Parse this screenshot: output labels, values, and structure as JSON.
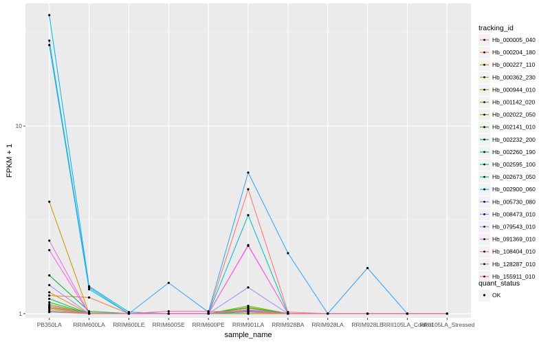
{
  "chart_data": {
    "type": "line",
    "xlabel": "sample_name",
    "ylabel": "FPKM + 1",
    "y_scale": "log10",
    "ylim": [
      0.95,
      45
    ],
    "y_ticks": [
      1,
      10
    ],
    "y_tick_labels": [
      "1",
      "10"
    ],
    "grid": true,
    "legend_placement": "right",
    "categories": [
      "PB350LA",
      "RRIM600LA",
      "RRIM600LE",
      "RRIM600SE",
      "RRIM600PE",
      "RRIM901LA",
      "RRIM928BA",
      "RRIM928LA",
      "RRIM928LE",
      "RRII105LA_Control",
      "RRII105LA_Stressed"
    ],
    "legend_title": "tracking_id",
    "series": [
      {
        "name": "Hb_000005_040",
        "color": "#F8766D",
        "values": [
          1.05,
          1.0,
          1.0,
          1.0,
          1.0,
          4.6,
          1.02,
          1.0,
          1.0,
          1.0,
          1.0
        ]
      },
      {
        "name": "Hb_000204_180",
        "color": "#EE8044",
        "values": [
          1.25,
          1.22,
          1.0,
          1.0,
          1.0,
          1.05,
          1.0,
          1.0,
          1.0,
          1.0,
          1.0
        ]
      },
      {
        "name": "Hb_000227_110",
        "color": "#E18A00",
        "values": [
          1.3,
          1.0,
          1.0,
          1.0,
          1.0,
          1.0,
          1.0,
          1.0,
          1.0,
          1.0,
          1.0
        ]
      },
      {
        "name": "Hb_000362_230",
        "color": "#CF9400",
        "values": [
          3.95,
          1.0,
          1.0,
          1.0,
          1.0,
          1.0,
          1.0,
          1.0,
          1.0,
          1.0,
          1.0
        ]
      },
      {
        "name": "Hb_000944_010",
        "color": "#B79F00",
        "values": [
          1.07,
          1.0,
          1.0,
          1.0,
          1.0,
          1.0,
          1.0,
          1.0,
          1.0,
          1.0,
          1.0
        ]
      },
      {
        "name": "Hb_001142_020",
        "color": "#9AA800",
        "values": [
          1.08,
          1.01,
          1.0,
          1.0,
          1.0,
          1.07,
          1.0,
          1.0,
          1.0,
          1.0,
          1.0
        ]
      },
      {
        "name": "Hb_002022_050",
        "color": "#74B000",
        "values": [
          1.12,
          1.0,
          1.0,
          1.0,
          1.0,
          1.1,
          1.0,
          1.0,
          1.0,
          1.0,
          1.0
        ]
      },
      {
        "name": "Hb_002141_010",
        "color": "#2DB600",
        "values": [
          1.15,
          1.0,
          1.0,
          1.0,
          1.0,
          1.08,
          1.0,
          1.0,
          1.0,
          1.0,
          1.0
        ]
      },
      {
        "name": "Hb_002232_200",
        "color": "#00BA38",
        "values": [
          1.6,
          1.03,
          1.0,
          1.0,
          1.0,
          1.05,
          1.0,
          1.0,
          1.0,
          1.0,
          1.0
        ]
      },
      {
        "name": "Hb_002260_190",
        "color": "#00BE70",
        "values": [
          1.2,
          1.0,
          1.0,
          1.0,
          1.0,
          1.03,
          1.0,
          1.0,
          1.0,
          1.0,
          1.0
        ]
      },
      {
        "name": "Hb_002595_100",
        "color": "#00C1A3",
        "values": [
          1.03,
          1.0,
          1.0,
          1.0,
          1.0,
          1.02,
          1.0,
          1.0,
          1.0,
          1.0,
          1.0
        ]
      },
      {
        "name": "Hb_002673_050",
        "color": "#00BFC4",
        "values": [
          27.0,
          1.35,
          1.0,
          1.0,
          1.0,
          3.35,
          1.0,
          1.0,
          1.0,
          1.0,
          1.0
        ]
      },
      {
        "name": "Hb_002900_060",
        "color": "#00B8E7",
        "values": [
          39.0,
          1.4,
          1.02,
          1.0,
          1.0,
          1.03,
          1.0,
          1.0,
          1.0,
          1.0,
          1.0
        ]
      },
      {
        "name": "Hb_005730_080",
        "color": "#35A2FF",
        "values": [
          28.5,
          1.38,
          1.0,
          1.46,
          1.02,
          5.65,
          2.1,
          1.0,
          1.75,
          1.0,
          1.0
        ]
      },
      {
        "name": "Hb_008473_010",
        "color": "#9590FF",
        "values": [
          1.42,
          1.0,
          1.0,
          1.0,
          1.0,
          1.38,
          1.0,
          1.0,
          1.0,
          1.0,
          1.0
        ]
      },
      {
        "name": "Hb_079543_010",
        "color": "#C77CFF",
        "values": [
          1.1,
          1.0,
          1.0,
          1.0,
          1.0,
          1.05,
          1.0,
          1.0,
          1.0,
          1.0,
          1.0
        ]
      },
      {
        "name": "Hb_091369_010",
        "color": "#E76BF3",
        "values": [
          2.45,
          1.0,
          1.0,
          1.0,
          1.0,
          2.32,
          1.0,
          1.0,
          1.0,
          1.0,
          1.0
        ]
      },
      {
        "name": "Hb_108404_010",
        "color": "#FA62DB",
        "values": [
          2.18,
          1.0,
          1.0,
          1.0,
          1.0,
          2.3,
          1.0,
          1.0,
          1.0,
          1.0,
          1.0
        ]
      },
      {
        "name": "Hb_128287_010",
        "color": "#FF62BC",
        "values": [
          1.1,
          1.0,
          1.0,
          1.0,
          1.0,
          1.04,
          1.0,
          1.0,
          1.0,
          1.0,
          1.0
        ]
      },
      {
        "name": "Hb_155911_010",
        "color": "#FF6C91",
        "values": [
          1.02,
          1.0,
          1.0,
          1.03,
          1.03,
          1.02,
          1.0,
          1.0,
          1.0,
          1.0,
          1.0
        ]
      }
    ],
    "shape_legend": {
      "title": "quant_status",
      "items": [
        "OK"
      ]
    },
    "colors": {
      "panel_background": "#EBEBEB",
      "grid_major": "#FFFFFF",
      "point": "#000000"
    }
  }
}
